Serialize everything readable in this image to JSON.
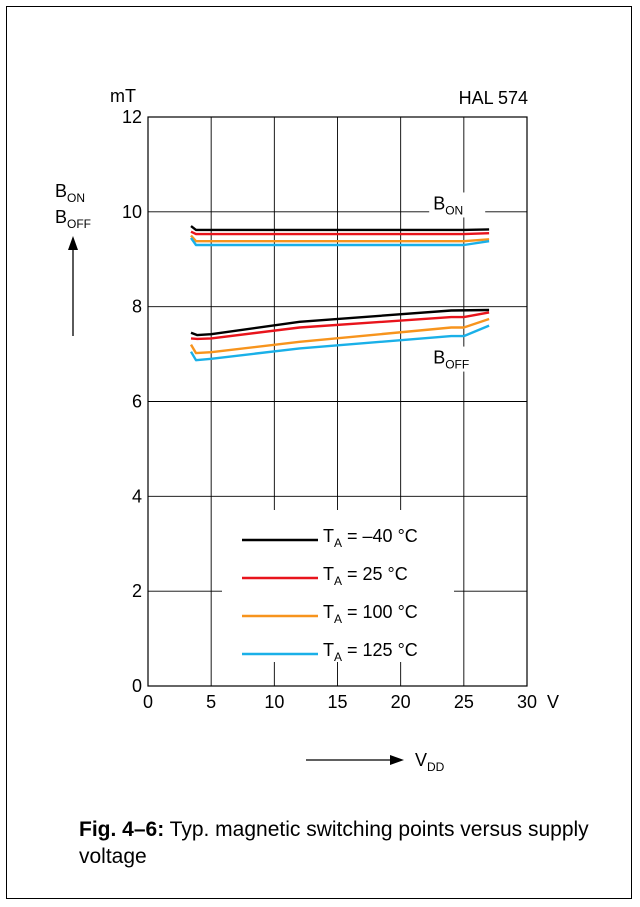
{
  "chart_data": {
    "type": "line",
    "part_label": "HAL 574",
    "y_unit": "mT",
    "x_unit": "V",
    "ylim": [
      0,
      12
    ],
    "xlim": [
      0,
      30
    ],
    "y_ticks": [
      0,
      2,
      4,
      6,
      8,
      10,
      12
    ],
    "x_ticks": [
      0,
      5,
      10,
      15,
      20,
      25,
      30
    ],
    "y_axis_label": {
      "line1_main": "B",
      "line1_sub": "ON",
      "line2_main": "B",
      "line2_sub": "OFF"
    },
    "x_axis_label": {
      "main": "V",
      "sub": "DD"
    },
    "annotations": [
      {
        "main": "B",
        "sub": "ON",
        "x": 24,
        "y": 10.05
      },
      {
        "main": "B",
        "sub": "OFF",
        "x": 24,
        "y": 6.8
      }
    ],
    "grid": true,
    "legend_position": "bottom-center",
    "series": [
      {
        "name": "T_A = –40 °C",
        "legend_main": "T",
        "legend_sub": "A",
        "legend_rest": " = –40 °C",
        "color": "#000000",
        "on": [
          [
            3.4,
            9.7
          ],
          [
            3.8,
            9.62
          ],
          [
            5,
            9.62
          ],
          [
            15,
            9.62
          ],
          [
            25,
            9.62
          ],
          [
            27,
            9.63
          ]
        ],
        "off": [
          [
            3.4,
            7.45
          ],
          [
            3.9,
            7.4
          ],
          [
            5,
            7.42
          ],
          [
            12,
            7.68
          ],
          [
            24,
            7.92
          ],
          [
            27,
            7.93
          ]
        ]
      },
      {
        "name": "T_A = 25 °C",
        "legend_main": "T",
        "legend_sub": "A",
        "legend_rest": " = 25 °C",
        "color": "#e8141c",
        "on": [
          [
            3.4,
            9.58
          ],
          [
            3.8,
            9.53
          ],
          [
            5,
            9.53
          ],
          [
            15,
            9.53
          ],
          [
            25,
            9.53
          ],
          [
            27,
            9.55
          ]
        ],
        "off": [
          [
            3.4,
            7.33
          ],
          [
            3.9,
            7.32
          ],
          [
            5,
            7.33
          ],
          [
            12,
            7.56
          ],
          [
            24,
            7.78
          ],
          [
            25,
            7.78
          ],
          [
            27,
            7.88
          ]
        ]
      },
      {
        "name": "T_A = 100 °C",
        "legend_main": "T",
        "legend_sub": "A",
        "legend_rest": " = 100 °C",
        "color": "#f7941d",
        "on": [
          [
            3.4,
            9.5
          ],
          [
            3.8,
            9.38
          ],
          [
            5,
            9.38
          ],
          [
            15,
            9.38
          ],
          [
            25,
            9.38
          ],
          [
            27,
            9.42
          ]
        ],
        "off": [
          [
            3.4,
            7.2
          ],
          [
            3.8,
            7.02
          ],
          [
            5,
            7.04
          ],
          [
            12,
            7.26
          ],
          [
            24,
            7.56
          ],
          [
            25,
            7.56
          ],
          [
            27,
            7.74
          ]
        ]
      },
      {
        "name": "T_A = 125 °C",
        "legend_main": "T",
        "legend_sub": "A",
        "legend_rest": " = 125 °C",
        "color": "#1ab0e8",
        "on": [
          [
            3.4,
            9.45
          ],
          [
            3.8,
            9.3
          ],
          [
            5,
            9.3
          ],
          [
            15,
            9.3
          ],
          [
            25,
            9.3
          ],
          [
            27,
            9.38
          ]
        ],
        "off": [
          [
            3.4,
            7.05
          ],
          [
            3.8,
            6.87
          ],
          [
            5,
            6.9
          ],
          [
            12,
            7.12
          ],
          [
            24,
            7.38
          ],
          [
            25,
            7.38
          ],
          [
            27,
            7.6
          ]
        ]
      }
    ]
  },
  "caption": {
    "label": "Fig. 4–6:",
    "text": " Typ. magnetic switching points versus supply voltage"
  }
}
